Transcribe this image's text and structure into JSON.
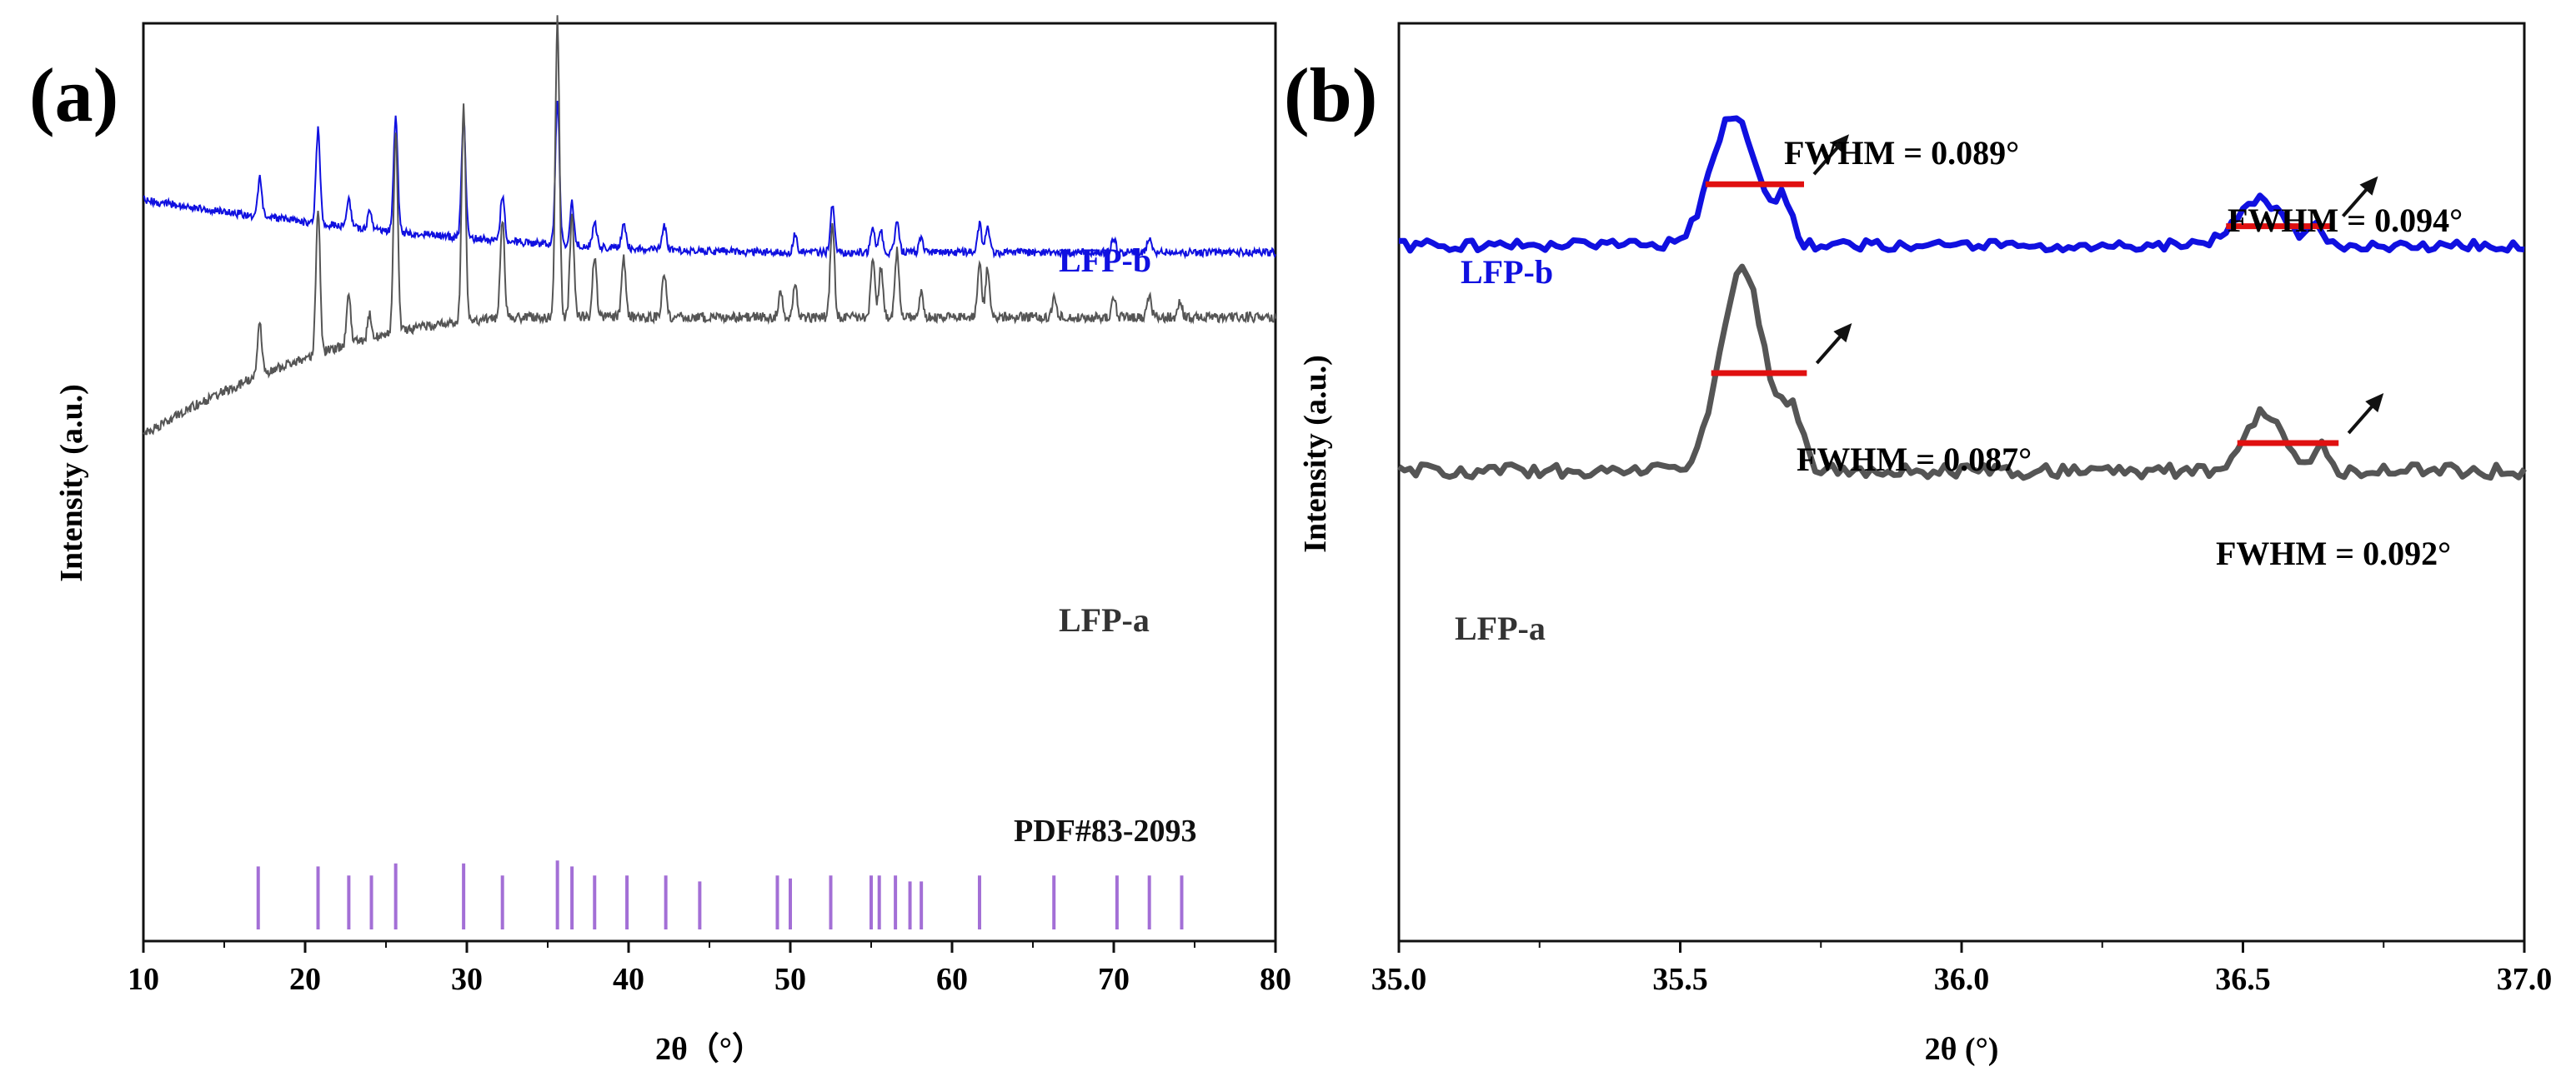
{
  "chart_data": [
    {
      "panel_label": "(a)",
      "type": "line",
      "title": "",
      "xlabel": "2θ（°）",
      "ylabel": "Intensity (a.u.)",
      "xlim": [
        10,
        80
      ],
      "xticks": [
        10,
        20,
        30,
        40,
        50,
        60,
        70,
        80
      ],
      "grid": false,
      "series": [
        {
          "name": "LFP-b",
          "color": "#1010e0",
          "baseline_start": 0.505,
          "baseline_end": 0.655,
          "noise": 0.011,
          "peaks": [
            [
              17.2,
              0.11
            ],
            [
              20.8,
              0.27
            ],
            [
              22.7,
              0.08
            ],
            [
              24.0,
              0.05
            ],
            [
              25.6,
              0.33
            ],
            [
              29.8,
              0.34
            ],
            [
              32.2,
              0.13
            ],
            [
              35.6,
              0.41
            ],
            [
              36.5,
              0.12
            ],
            [
              37.9,
              0.07
            ],
            [
              39.7,
              0.07
            ],
            [
              42.2,
              0.07
            ],
            [
              50.3,
              0.05
            ],
            [
              52.6,
              0.13
            ],
            [
              55.1,
              0.07
            ],
            [
              55.6,
              0.06
            ],
            [
              56.6,
              0.09
            ],
            [
              58.1,
              0.04
            ],
            [
              61.7,
              0.08
            ],
            [
              62.2,
              0.07
            ],
            [
              70.0,
              0.04
            ],
            [
              72.2,
              0.04
            ]
          ]
        },
        {
          "name": "LFP-a",
          "color": "#555555",
          "baseline_start": 1.175,
          "baseline_end": 0.84,
          "noise": 0.014,
          "peaks": [
            [
              17.2,
              0.15
            ],
            [
              20.8,
              0.42
            ],
            [
              22.7,
              0.14
            ],
            [
              24.0,
              0.07
            ],
            [
              25.6,
              0.58
            ],
            [
              29.8,
              0.61
            ],
            [
              32.2,
              0.28
            ],
            [
              35.6,
              0.85
            ],
            [
              36.5,
              0.29
            ],
            [
              37.9,
              0.17
            ],
            [
              39.7,
              0.17
            ],
            [
              42.2,
              0.13
            ],
            [
              49.4,
              0.07
            ],
            [
              50.3,
              0.09
            ],
            [
              52.6,
              0.27
            ],
            [
              55.1,
              0.16
            ],
            [
              55.6,
              0.14
            ],
            [
              56.6,
              0.19
            ],
            [
              58.1,
              0.07
            ],
            [
              61.7,
              0.16
            ],
            [
              62.2,
              0.14
            ],
            [
              66.3,
              0.05
            ],
            [
              70.0,
              0.06
            ],
            [
              72.2,
              0.06
            ],
            [
              74.1,
              0.05
            ]
          ]
        }
      ],
      "reference": {
        "name": "PDF#83-2093",
        "color": "#a36fd6",
        "positions": [
          17.1,
          20.8,
          22.7,
          24.1,
          25.6,
          29.8,
          32.2,
          35.6,
          36.5,
          37.9,
          39.9,
          42.3,
          44.4,
          49.2,
          50.0,
          52.5,
          55.0,
          55.5,
          56.5,
          57.4,
          58.1,
          61.7,
          66.3,
          70.2,
          72.2,
          74.2
        ],
        "heights": [
          0.21,
          0.21,
          0.18,
          0.18,
          0.22,
          0.22,
          0.18,
          0.23,
          0.21,
          0.18,
          0.18,
          0.18,
          0.16,
          0.18,
          0.17,
          0.18,
          0.18,
          0.18,
          0.18,
          0.16,
          0.16,
          0.18,
          0.18,
          0.18,
          0.18,
          0.18
        ]
      }
    },
    {
      "panel_label": "(b)",
      "type": "line",
      "title": "",
      "xlabel": "2θ (°)",
      "ylabel": "Intensity (a.u.)",
      "xlim": [
        35.0,
        37.0
      ],
      "xticks": [
        "35.0",
        "35.5",
        "36.0",
        "36.5",
        "37.0"
      ],
      "grid": false,
      "series": [
        {
          "name": "LFP-b",
          "color": "#1010e0",
          "baseline": 0.635,
          "noise": 0.01,
          "peaks": [
            [
              35.595,
              0.38,
              0.055
            ],
            [
              35.685,
              0.12,
              0.02
            ],
            [
              36.53,
              0.13,
              0.06
            ],
            [
              36.63,
              0.05,
              0.015
            ]
          ],
          "fwhm": [
            {
              "label": "FWHM = 0.089°",
              "x_start": 35.545,
              "x_end": 35.72,
              "level": 0.46
            },
            {
              "label": "FWHM = 0.094°",
              "x_start": 36.47,
              "x_end": 36.66,
              "level": 0.58
            }
          ]
        },
        {
          "name": "LFP-a",
          "color": "#555555",
          "baseline": 1.28,
          "noise": 0.013,
          "peaks": [
            [
              35.61,
              0.58,
              0.055
            ],
            [
              35.7,
              0.16,
              0.025
            ],
            [
              36.54,
              0.17,
              0.045
            ],
            [
              36.64,
              0.07,
              0.02
            ]
          ],
          "fwhm": [
            {
              "label": "FWHM = 0.087°",
              "x_start": 35.555,
              "x_end": 35.725,
              "level": 1.0
            },
            {
              "label": "FWHM = 0.092°",
              "x_start": 36.49,
              "x_end": 36.67,
              "level": 1.2
            }
          ]
        }
      ]
    }
  ]
}
